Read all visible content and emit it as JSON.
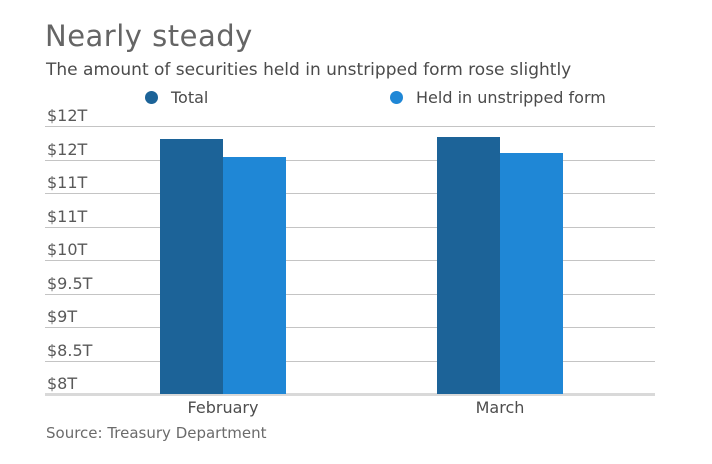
{
  "header": {
    "title": "Nearly steady",
    "subtitle": "The amount of securities held in unstripped form rose slightly"
  },
  "legend": [
    {
      "label": "Total",
      "color": "#1c6398",
      "marker": "circle-icon"
    },
    {
      "label": "Held in unstripped form",
      "color": "#1f87d6",
      "marker": "circle-icon"
    }
  ],
  "chart_data": {
    "type": "bar",
    "title": "Nearly steady",
    "subtitle": "The amount of securities held in unstripped form rose slightly",
    "categories": [
      "February",
      "March"
    ],
    "series": [
      {
        "name": "Total",
        "color": "#1c6398",
        "values": [
          11.8,
          11.84
        ]
      },
      {
        "name": "Held in unstripped form",
        "color": "#1f87d6",
        "values": [
          11.54,
          11.59
        ]
      }
    ],
    "unit": "trillions of dollars",
    "xlabel": "",
    "ylabel": "",
    "ylim": [
      8,
      12
    ],
    "grid": true,
    "legend_position": "top",
    "y_ticks": [
      {
        "value": 12.0,
        "label": "$12T"
      },
      {
        "value": 11.5,
        "label": "$12T"
      },
      {
        "value": 11.0,
        "label": "$11T"
      },
      {
        "value": 10.5,
        "label": "$11T"
      },
      {
        "value": 10.0,
        "label": "$10T"
      },
      {
        "value": 9.5,
        "label": "$9.5T"
      },
      {
        "value": 9.0,
        "label": "$9T"
      },
      {
        "value": 8.5,
        "label": "$8.5T"
      },
      {
        "value": 8.0,
        "label": "$8T"
      }
    ]
  },
  "footer": {
    "source": "Source: Treasury Department"
  }
}
